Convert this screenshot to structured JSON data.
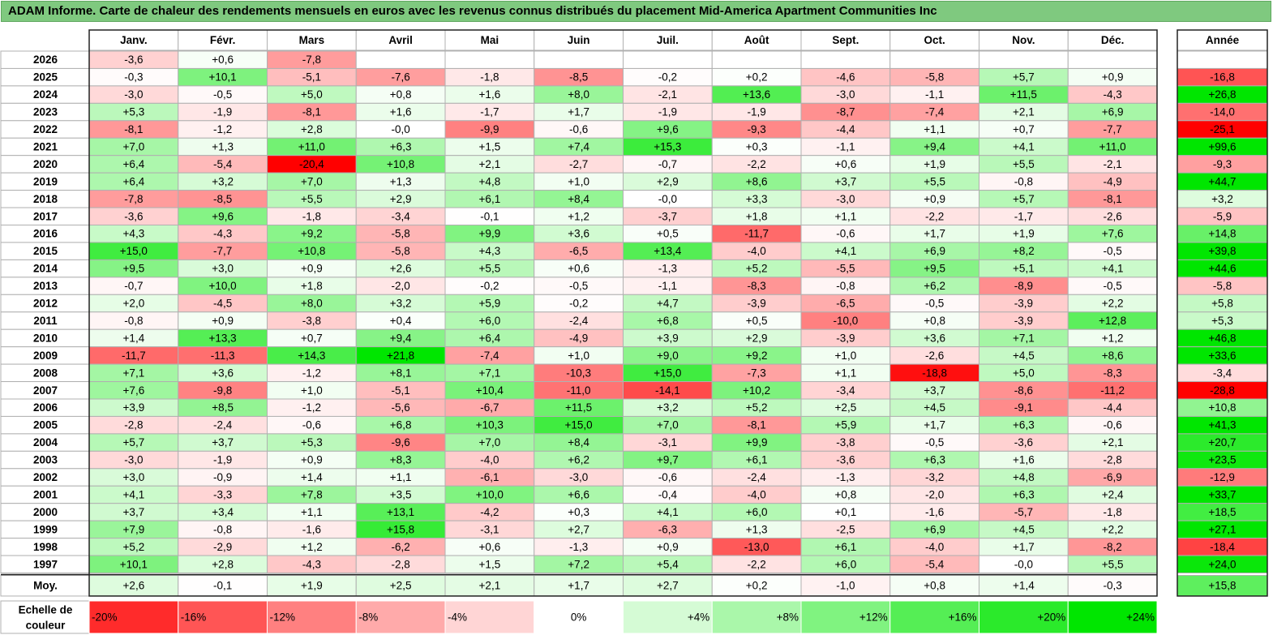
{
  "title": "ADAM Informe. Carte de chaleur des rendements mensuels en euros avec les revenus connus distribués du placement Mid-America Apartment Communities Inc",
  "chart_data": {
    "type": "heatmap",
    "months": [
      "Janv.",
      "Févr.",
      "Mars",
      "Avril",
      "Mai",
      "Juin",
      "Juil.",
      "Août",
      "Sept.",
      "Oct.",
      "Nov.",
      "Déc."
    ],
    "year_header": "Année",
    "rows": [
      {
        "year": "2026",
        "values": [
          "-3,6",
          "+0,6",
          "-7,8",
          null,
          null,
          null,
          null,
          null,
          null,
          null,
          null,
          null
        ],
        "annual": null
      },
      {
        "year": "2025",
        "values": [
          "-0,3",
          "+10,1",
          "-5,1",
          "-7,6",
          "-1,8",
          "-8,5",
          "-0,2",
          "+0,2",
          "-4,6",
          "-5,8",
          "+5,7",
          "+0,9"
        ],
        "annual": "-16,8"
      },
      {
        "year": "2024",
        "values": [
          "-3,0",
          "-0,5",
          "+5,0",
          "+0,8",
          "+1,6",
          "+8,0",
          "-2,1",
          "+13,6",
          "-3,0",
          "-1,1",
          "+11,5",
          "-4,3"
        ],
        "annual": "+26,8"
      },
      {
        "year": "2023",
        "values": [
          "+5,3",
          "-1,9",
          "-8,1",
          "+1,6",
          "-1,7",
          "+1,7",
          "-1,9",
          "-1,9",
          "-8,7",
          "-7,4",
          "+2,1",
          "+6,9"
        ],
        "annual": "-14,0"
      },
      {
        "year": "2022",
        "values": [
          "-8,1",
          "-1,2",
          "+2,8",
          "-0,0",
          "-9,9",
          "-0,6",
          "+9,6",
          "-9,3",
          "-4,4",
          "+1,1",
          "+0,7",
          "-7,7"
        ],
        "annual": "-25,1"
      },
      {
        "year": "2021",
        "values": [
          "+7,0",
          "+1,3",
          "+11,0",
          "+6,3",
          "+1,5",
          "+7,4",
          "+15,3",
          "+0,3",
          "-1,1",
          "+9,4",
          "+4,1",
          "+11,0"
        ],
        "annual": "+99,6"
      },
      {
        "year": "2020",
        "values": [
          "+6,4",
          "-5,4",
          "-20,4",
          "+10,8",
          "+2,1",
          "-2,7",
          "-0,7",
          "-2,2",
          "+0,6",
          "+1,9",
          "+5,5",
          "-2,1"
        ],
        "annual": "-9,3"
      },
      {
        "year": "2019",
        "values": [
          "+6,4",
          "+3,2",
          "+7,0",
          "+1,3",
          "+4,8",
          "+1,0",
          "+2,9",
          "+8,6",
          "+3,7",
          "+5,5",
          "-0,8",
          "-4,9"
        ],
        "annual": "+44,7"
      },
      {
        "year": "2018",
        "values": [
          "-7,8",
          "-8,5",
          "+5,5",
          "+2,9",
          "+6,1",
          "+8,4",
          "-0,0",
          "+3,3",
          "-3,0",
          "+0,9",
          "+5,7",
          "-8,1"
        ],
        "annual": "+3,2"
      },
      {
        "year": "2017",
        "values": [
          "-3,6",
          "+9,6",
          "-1,8",
          "-3,4",
          "-0,1",
          "+1,2",
          "-3,7",
          "+1,8",
          "+1,1",
          "-2,2",
          "-1,7",
          "-2,6"
        ],
        "annual": "-5,9"
      },
      {
        "year": "2016",
        "values": [
          "+4,3",
          "-4,3",
          "+9,2",
          "-5,8",
          "+9,9",
          "+3,6",
          "+0,5",
          "-11,7",
          "-0,6",
          "+1,7",
          "+1,9",
          "+7,6"
        ],
        "annual": "+14,8"
      },
      {
        "year": "2015",
        "values": [
          "+15,0",
          "-7,7",
          "+10,8",
          "-5,8",
          "+4,3",
          "-6,5",
          "+13,4",
          "-4,0",
          "+4,1",
          "+6,9",
          "+8,2",
          "-0,5"
        ],
        "annual": "+39,8"
      },
      {
        "year": "2014",
        "values": [
          "+9,5",
          "+3,0",
          "+0,9",
          "+2,6",
          "+5,5",
          "+0,6",
          "-1,3",
          "+5,2",
          "-5,5",
          "+9,5",
          "+5,1",
          "+4,1"
        ],
        "annual": "+44,6"
      },
      {
        "year": "2013",
        "values": [
          "-0,7",
          "+10,0",
          "+1,8",
          "-2,0",
          "-0,2",
          "-0,5",
          "-1,1",
          "-8,3",
          "-0,8",
          "+6,2",
          "-8,9",
          "-0,5"
        ],
        "annual": "-5,8"
      },
      {
        "year": "2012",
        "values": [
          "+2,0",
          "-4,5",
          "+8,0",
          "+3,2",
          "+5,9",
          "-0,2",
          "+4,7",
          "-3,9",
          "-6,5",
          "-0,5",
          "-3,9",
          "+2,2"
        ],
        "annual": "+5,8"
      },
      {
        "year": "2011",
        "values": [
          "-0,8",
          "+0,9",
          "-3,8",
          "+0,4",
          "+6,0",
          "-2,4",
          "+6,8",
          "+0,5",
          "-10,0",
          "+0,8",
          "-3,9",
          "+12,8"
        ],
        "annual": "+5,3"
      },
      {
        "year": "2010",
        "values": [
          "+1,4",
          "+13,3",
          "+0,7",
          "+9,4",
          "+6,4",
          "-4,9",
          "+3,9",
          "+2,9",
          "-3,9",
          "+3,6",
          "+7,1",
          "+1,2"
        ],
        "annual": "+46,8"
      },
      {
        "year": "2009",
        "values": [
          "-11,7",
          "-11,3",
          "+14,3",
          "+21,8",
          "-7,4",
          "+1,0",
          "+9,0",
          "+9,2",
          "+1,0",
          "-2,6",
          "+4,5",
          "+8,6"
        ],
        "annual": "+33,6"
      },
      {
        "year": "2008",
        "values": [
          "+7,1",
          "+3,6",
          "-1,2",
          "+8,1",
          "+7,1",
          "-10,3",
          "+15,0",
          "-7,3",
          "+1,1",
          "-18,8",
          "+5,0",
          "-8,3"
        ],
        "annual": "-3,4"
      },
      {
        "year": "2007",
        "values": [
          "+7,6",
          "-9,8",
          "+1,0",
          "-5,1",
          "+10,4",
          "-11,0",
          "-14,1",
          "+10,2",
          "-3,4",
          "+3,7",
          "-8,6",
          "-11,2"
        ],
        "annual": "-28,8"
      },
      {
        "year": "2006",
        "values": [
          "+3,9",
          "+8,5",
          "-1,2",
          "-5,6",
          "-6,7",
          "+11,5",
          "+3,2",
          "+5,2",
          "+2,5",
          "+4,5",
          "-9,1",
          "-4,4"
        ],
        "annual": "+10,8"
      },
      {
        "year": "2005",
        "values": [
          "-2,8",
          "-2,4",
          "-0,6",
          "+6,8",
          "+10,3",
          "+15,0",
          "+7,0",
          "-8,1",
          "+5,9",
          "+1,7",
          "+6,3",
          "-0,6"
        ],
        "annual": "+41,3"
      },
      {
        "year": "2004",
        "values": [
          "+5,7",
          "+3,7",
          "+5,3",
          "-9,6",
          "+7,0",
          "+8,4",
          "-3,1",
          "+9,9",
          "-3,8",
          "-0,5",
          "-3,6",
          "+2,1"
        ],
        "annual": "+20,7"
      },
      {
        "year": "2003",
        "values": [
          "-3,0",
          "-1,9",
          "+0,9",
          "+8,3",
          "-4,0",
          "+6,2",
          "+9,7",
          "+6,1",
          "-3,6",
          "+6,3",
          "+1,6",
          "-2,8"
        ],
        "annual": "+23,5"
      },
      {
        "year": "2002",
        "values": [
          "+3,0",
          "-0,9",
          "+1,4",
          "+1,1",
          "-6,1",
          "-3,0",
          "-0,6",
          "-2,4",
          "-1,3",
          "-3,2",
          "+4,8",
          "-6,9"
        ],
        "annual": "-12,9"
      },
      {
        "year": "2001",
        "values": [
          "+4,1",
          "-3,3",
          "+7,8",
          "+3,5",
          "+10,0",
          "+6,6",
          "-0,4",
          "-4,0",
          "+0,8",
          "-2,0",
          "+6,3",
          "+2,4"
        ],
        "annual": "+33,7"
      },
      {
        "year": "2000",
        "values": [
          "+3,7",
          "+3,4",
          "+1,1",
          "+13,1",
          "-4,2",
          "+0,3",
          "+4,1",
          "+6,0",
          "+0,1",
          "-1,6",
          "-5,7",
          "-1,8"
        ],
        "annual": "+18,5"
      },
      {
        "year": "1999",
        "values": [
          "+7,9",
          "-0,8",
          "-1,6",
          "+15,8",
          "-3,1",
          "+2,7",
          "-6,3",
          "+1,3",
          "-2,5",
          "+6,9",
          "+4,5",
          "+2,2"
        ],
        "annual": "+27,1"
      },
      {
        "year": "1998",
        "values": [
          "+5,2",
          "-2,9",
          "+1,2",
          "-6,2",
          "+0,6",
          "-1,3",
          "+0,9",
          "-13,0",
          "+6,1",
          "-4,0",
          "+1,7",
          "-8,2"
        ],
        "annual": "-18,4"
      },
      {
        "year": "1997",
        "values": [
          "+10,1",
          "+2,8",
          "-4,3",
          "-2,8",
          "+1,5",
          "+7,2",
          "+5,4",
          "-2,2",
          "+6,0",
          "-5,4",
          "-0,0",
          "+5,5"
        ],
        "annual": "+24,0"
      }
    ],
    "average": {
      "label": "Moy.",
      "values": [
        "+2,6",
        "-0,1",
        "+1,9",
        "+2,5",
        "+2,1",
        "+1,7",
        "+2,7",
        "+0,2",
        "-1,0",
        "+0,8",
        "+1,4",
        "-0,3"
      ],
      "annual": "+15,8"
    },
    "scale": {
      "label_line1": "Echelle de",
      "label_line2": "couleur",
      "steps": [
        {
          "label": "-20%",
          "value": -20
        },
        {
          "label": "-16%",
          "value": -16
        },
        {
          "label": "-12%",
          "value": -12
        },
        {
          "label": "-8%",
          "value": -8
        },
        {
          "label": "-4%",
          "value": -4
        },
        {
          "label": "0%",
          "value": 0
        },
        {
          "label": "+4%",
          "value": 4
        },
        {
          "label": "+8%",
          "value": 8
        },
        {
          "label": "+12%",
          "value": 12
        },
        {
          "label": "+16%",
          "value": 16
        },
        {
          "label": "+20%",
          "value": 20
        },
        {
          "label": "+24%",
          "value": 24
        }
      ]
    },
    "colors": {
      "negative_max": "#ff0000",
      "neutral": "#ffffff",
      "positive_max": "#00e600",
      "grid": "#b0b0b0",
      "title_bg": "#7fc97f"
    }
  }
}
